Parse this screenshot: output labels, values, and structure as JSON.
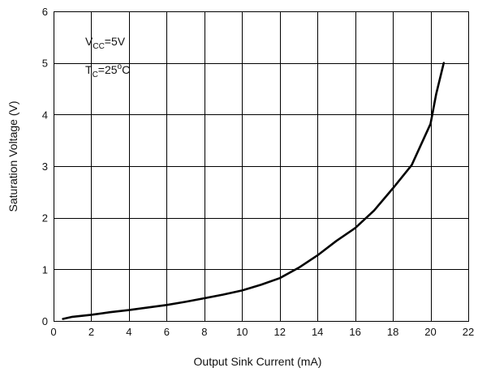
{
  "chart_data": {
    "type": "line",
    "title": "",
    "xlabel": "Output Sink Current (mA)",
    "ylabel": "Saturation Voltage (V)",
    "xlim": [
      0,
      22
    ],
    "ylim": [
      0,
      6
    ],
    "x_ticks": [
      "0",
      "2",
      "4",
      "6",
      "8",
      "10",
      "12",
      "14",
      "16",
      "18",
      "20",
      "22"
    ],
    "y_ticks": [
      "0",
      "1",
      "2",
      "3",
      "4",
      "5",
      "6"
    ],
    "grid": true,
    "annotations": {
      "line1": {
        "main": "V",
        "sub": "CC",
        "rest": "=5V"
      },
      "line2": {
        "main": "T",
        "sub": "C",
        "rest": "=25",
        "sup": "o",
        "unit": "C"
      }
    },
    "series": [
      {
        "x": [
          0.5,
          1,
          2,
          3,
          4,
          5,
          6,
          7,
          8,
          9,
          10,
          11,
          12,
          13,
          14,
          15,
          16,
          17,
          18,
          19,
          20,
          20.3,
          20.7
        ],
        "y": [
          0.04,
          0.08,
          0.12,
          0.17,
          0.21,
          0.26,
          0.31,
          0.37,
          0.44,
          0.51,
          0.59,
          0.7,
          0.83,
          1.03,
          1.27,
          1.55,
          1.8,
          2.14,
          2.57,
          3.02,
          3.82,
          4.4,
          5.0
        ]
      }
    ]
  }
}
